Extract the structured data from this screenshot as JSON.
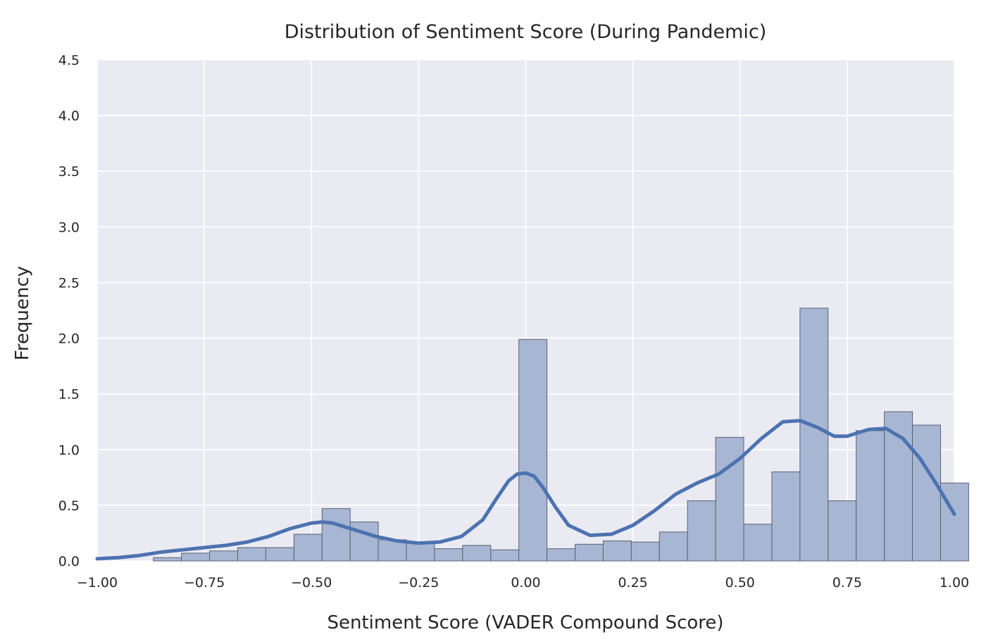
{
  "chart_data": {
    "type": "bar",
    "title": "Distribution of Sentiment Score (During Pandemic)",
    "xlabel": "Sentiment Score (VADER Compound Score)",
    "ylabel": "Frequency",
    "xlim": [
      -1.0,
      1.0
    ],
    "ylim": [
      0,
      4.5
    ],
    "x_ticks": [
      "−1.00",
      "−0.75",
      "−0.50",
      "−0.25",
      "0.00",
      "0.25",
      "0.50",
      "0.75",
      "1.00"
    ],
    "x_tick_values": [
      -1.0,
      -0.75,
      -0.5,
      -0.25,
      0.0,
      0.25,
      0.5,
      0.75,
      1.0
    ],
    "y_ticks": [
      "0.0",
      "0.5",
      "1.0",
      "1.5",
      "2.0",
      "2.5",
      "3.0",
      "3.5",
      "4.0",
      "4.5"
    ],
    "y_tick_values": [
      0.0,
      0.5,
      1.0,
      1.5,
      2.0,
      2.5,
      3.0,
      3.5,
      4.0,
      4.5
    ],
    "grid": true,
    "background_color": "#eaeaf2",
    "bar_color": "#a7b6d3",
    "bar_edge_color": "#5a6272",
    "kde_color": "#4c72b0",
    "bins": {
      "bin_width": 0.0656,
      "edges_start": -0.8689,
      "values": [
        0.03,
        0.07,
        0.09,
        0.12,
        0.12,
        0.24,
        0.47,
        0.35,
        0.19,
        0.16,
        0.11,
        0.14,
        0.1,
        1.99,
        0.11,
        0.15,
        0.18,
        0.17,
        0.26,
        0.54,
        1.11,
        0.33,
        0.8,
        2.27,
        0.54,
        1.17,
        1.34,
        1.22,
        0.7
      ]
    },
    "kde": {
      "x": [
        -1.0,
        -0.95,
        -0.9,
        -0.85,
        -0.8,
        -0.75,
        -0.7,
        -0.65,
        -0.6,
        -0.55,
        -0.5,
        -0.475,
        -0.45,
        -0.4,
        -0.35,
        -0.3,
        -0.25,
        -0.2,
        -0.15,
        -0.1,
        -0.07,
        -0.04,
        -0.02,
        0.0,
        0.02,
        0.04,
        0.07,
        0.1,
        0.15,
        0.2,
        0.25,
        0.3,
        0.35,
        0.4,
        0.45,
        0.5,
        0.55,
        0.6,
        0.64,
        0.68,
        0.72,
        0.75,
        0.8,
        0.84,
        0.88,
        0.92,
        0.96,
        1.0
      ],
      "y": [
        0.02,
        0.03,
        0.05,
        0.08,
        0.1,
        0.12,
        0.14,
        0.17,
        0.22,
        0.29,
        0.34,
        0.35,
        0.34,
        0.28,
        0.22,
        0.18,
        0.16,
        0.17,
        0.22,
        0.37,
        0.55,
        0.72,
        0.78,
        0.79,
        0.76,
        0.66,
        0.48,
        0.32,
        0.23,
        0.24,
        0.32,
        0.45,
        0.6,
        0.7,
        0.78,
        0.92,
        1.1,
        1.25,
        1.26,
        1.2,
        1.12,
        1.12,
        1.18,
        1.19,
        1.1,
        0.92,
        0.68,
        0.42
      ]
    }
  }
}
